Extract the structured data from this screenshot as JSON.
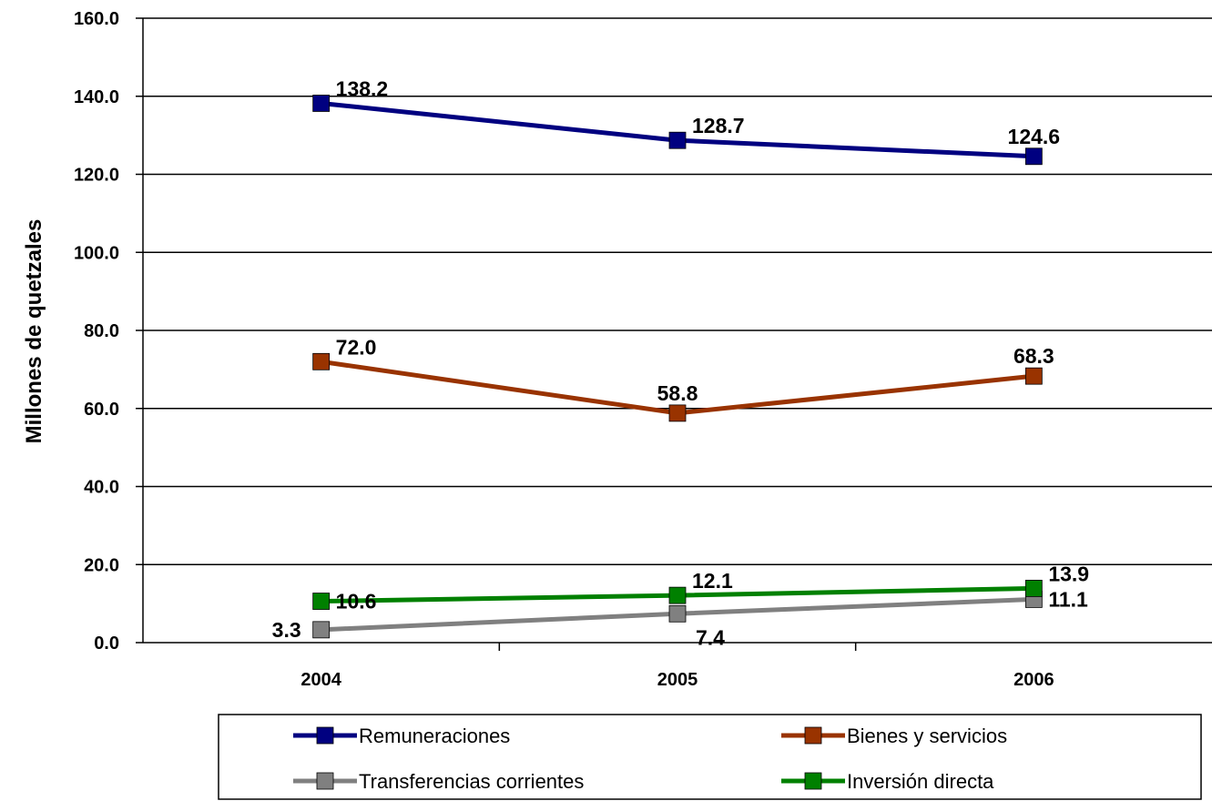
{
  "chart_data": {
    "type": "line",
    "title": "",
    "xlabel": "",
    "ylabel": "Millones de quetzales",
    "categories": [
      "2004",
      "2005",
      "2006"
    ],
    "ylim": [
      0,
      160
    ],
    "ytick_values": [
      0,
      20,
      40,
      60,
      80,
      100,
      120,
      140,
      160
    ],
    "ytick_labels": [
      "0.0",
      "20.0",
      "40.0",
      "60.0",
      "80.0",
      "100.0",
      "120.0",
      "140.0",
      "160.0"
    ],
    "grid": true,
    "legend_position": "bottom",
    "series": [
      {
        "key": "remuneraciones",
        "name": "Remuneraciones",
        "color": "#000080",
        "values": [
          138.2,
          128.7,
          124.6
        ],
        "labels": [
          "138.2",
          "128.7",
          "124.6"
        ],
        "label_pos": [
          "above-right",
          "above-right",
          "above"
        ]
      },
      {
        "key": "bienes",
        "name": "Bienes y servicios",
        "color": "#993300",
        "values": [
          72.0,
          58.8,
          68.3
        ],
        "labels": [
          "72.0",
          "58.8",
          "68.3"
        ],
        "label_pos": [
          "above-right",
          "above",
          "above"
        ]
      },
      {
        "key": "transferencias",
        "name": "Transferencias corrientes",
        "color": "#808080",
        "values": [
          3.3,
          7.4,
          11.1
        ],
        "labels": [
          "3.3",
          "7.4",
          "11.1"
        ],
        "label_pos": [
          "left",
          "below-right",
          "right"
        ]
      },
      {
        "key": "inversion",
        "name": "Inversión directa",
        "color": "#008000",
        "values": [
          10.6,
          12.1,
          13.9
        ],
        "labels": [
          "10.6",
          "12.1",
          "13.9"
        ],
        "label_pos": [
          "right",
          "above-right",
          "above-right"
        ]
      }
    ]
  }
}
